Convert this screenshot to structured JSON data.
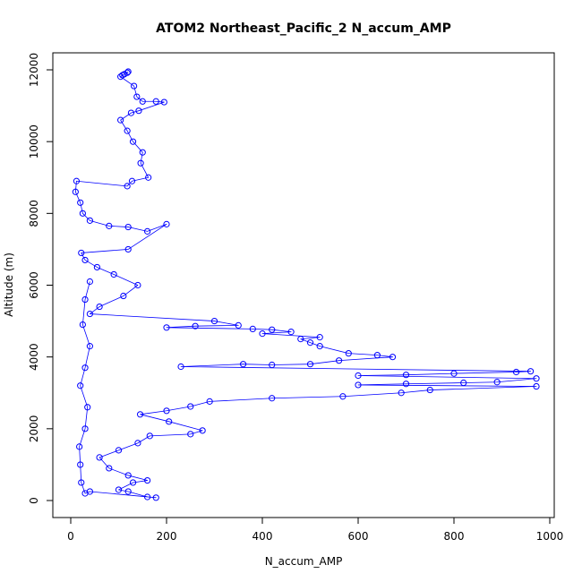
{
  "chart_data": {
    "type": "scatter",
    "title": "ATOM2 Northeast_Pacific_2 N_accum_AMP",
    "xlabel": "N_accum_AMP",
    "ylabel": "Altitude (m)",
    "xlim": [
      0,
      1000
    ],
    "ylim": [
      0,
      12000
    ],
    "x_ticks": [
      "0",
      "200",
      "400",
      "600",
      "800",
      "1000"
    ],
    "y_ticks": [
      "0",
      "2000",
      "4000",
      "6000",
      "8000",
      "10000",
      "12000"
    ],
    "series": [
      {
        "name": "",
        "color": "#0000ff",
        "marker": "open-circle",
        "lines": true,
        "points": [
          [
            120,
            11950
          ],
          [
            118,
            11920
          ],
          [
            112,
            11880
          ],
          [
            108,
            11850
          ],
          [
            104,
            11810
          ],
          [
            132,
            11550
          ],
          [
            138,
            11250
          ],
          [
            150,
            11120
          ],
          [
            178,
            11120
          ],
          [
            195,
            11100
          ],
          [
            142,
            10860
          ],
          [
            126,
            10800
          ],
          [
            104,
            10600
          ],
          [
            118,
            10300
          ],
          [
            130,
            10000
          ],
          [
            150,
            9700
          ],
          [
            146,
            9400
          ],
          [
            162,
            9000
          ],
          [
            128,
            8900
          ],
          [
            118,
            8760
          ],
          [
            12,
            8900
          ],
          [
            10,
            8600
          ],
          [
            20,
            8300
          ],
          [
            25,
            8000
          ],
          [
            40,
            7800
          ],
          [
            80,
            7650
          ],
          [
            120,
            7620
          ],
          [
            160,
            7500
          ],
          [
            200,
            7700
          ],
          [
            120,
            7000
          ],
          [
            22,
            6900
          ],
          [
            30,
            6700
          ],
          [
            55,
            6500
          ],
          [
            90,
            6300
          ],
          [
            140,
            6000
          ],
          [
            110,
            5700
          ],
          [
            60,
            5400
          ],
          [
            40,
            5200
          ],
          [
            300,
            5000
          ],
          [
            350,
            4880
          ],
          [
            260,
            4860
          ],
          [
            200,
            4820
          ],
          [
            380,
            4780
          ],
          [
            420,
            4760
          ],
          [
            460,
            4700
          ],
          [
            400,
            4650
          ],
          [
            520,
            4550
          ],
          [
            480,
            4500
          ],
          [
            500,
            4400
          ],
          [
            520,
            4300
          ],
          [
            580,
            4100
          ],
          [
            640,
            4050
          ],
          [
            672,
            4000
          ],
          [
            560,
            3900
          ],
          [
            500,
            3800
          ],
          [
            420,
            3780
          ],
          [
            360,
            3800
          ],
          [
            230,
            3730
          ],
          [
            960,
            3600
          ],
          [
            930,
            3580
          ],
          [
            800,
            3540
          ],
          [
            700,
            3500
          ],
          [
            600,
            3480
          ],
          [
            972,
            3400
          ],
          [
            890,
            3300
          ],
          [
            820,
            3280
          ],
          [
            700,
            3250
          ],
          [
            600,
            3220
          ],
          [
            972,
            3180
          ],
          [
            750,
            3080
          ],
          [
            690,
            3000
          ],
          [
            568,
            2900
          ],
          [
            420,
            2850
          ],
          [
            290,
            2760
          ],
          [
            250,
            2620
          ],
          [
            200,
            2500
          ],
          [
            145,
            2400
          ],
          [
            205,
            2200
          ],
          [
            275,
            1950
          ],
          [
            250,
            1850
          ],
          [
            165,
            1800
          ],
          [
            140,
            1600
          ],
          [
            100,
            1400
          ],
          [
            60,
            1200
          ],
          [
            80,
            900
          ],
          [
            120,
            700
          ],
          [
            160,
            560
          ],
          [
            130,
            500
          ],
          [
            100,
            300
          ],
          [
            120,
            250
          ],
          [
            160,
            100
          ],
          [
            178,
            80
          ],
          [
            40,
            250
          ],
          [
            30,
            200
          ],
          [
            22,
            500
          ],
          [
            20,
            1000
          ],
          [
            18,
            1500
          ],
          [
            30,
            2000
          ],
          [
            35,
            2600
          ],
          [
            20,
            3200
          ],
          [
            30,
            3700
          ],
          [
            40,
            4300
          ],
          [
            25,
            4900
          ],
          [
            30,
            5600
          ],
          [
            40,
            6100
          ]
        ]
      }
    ]
  }
}
